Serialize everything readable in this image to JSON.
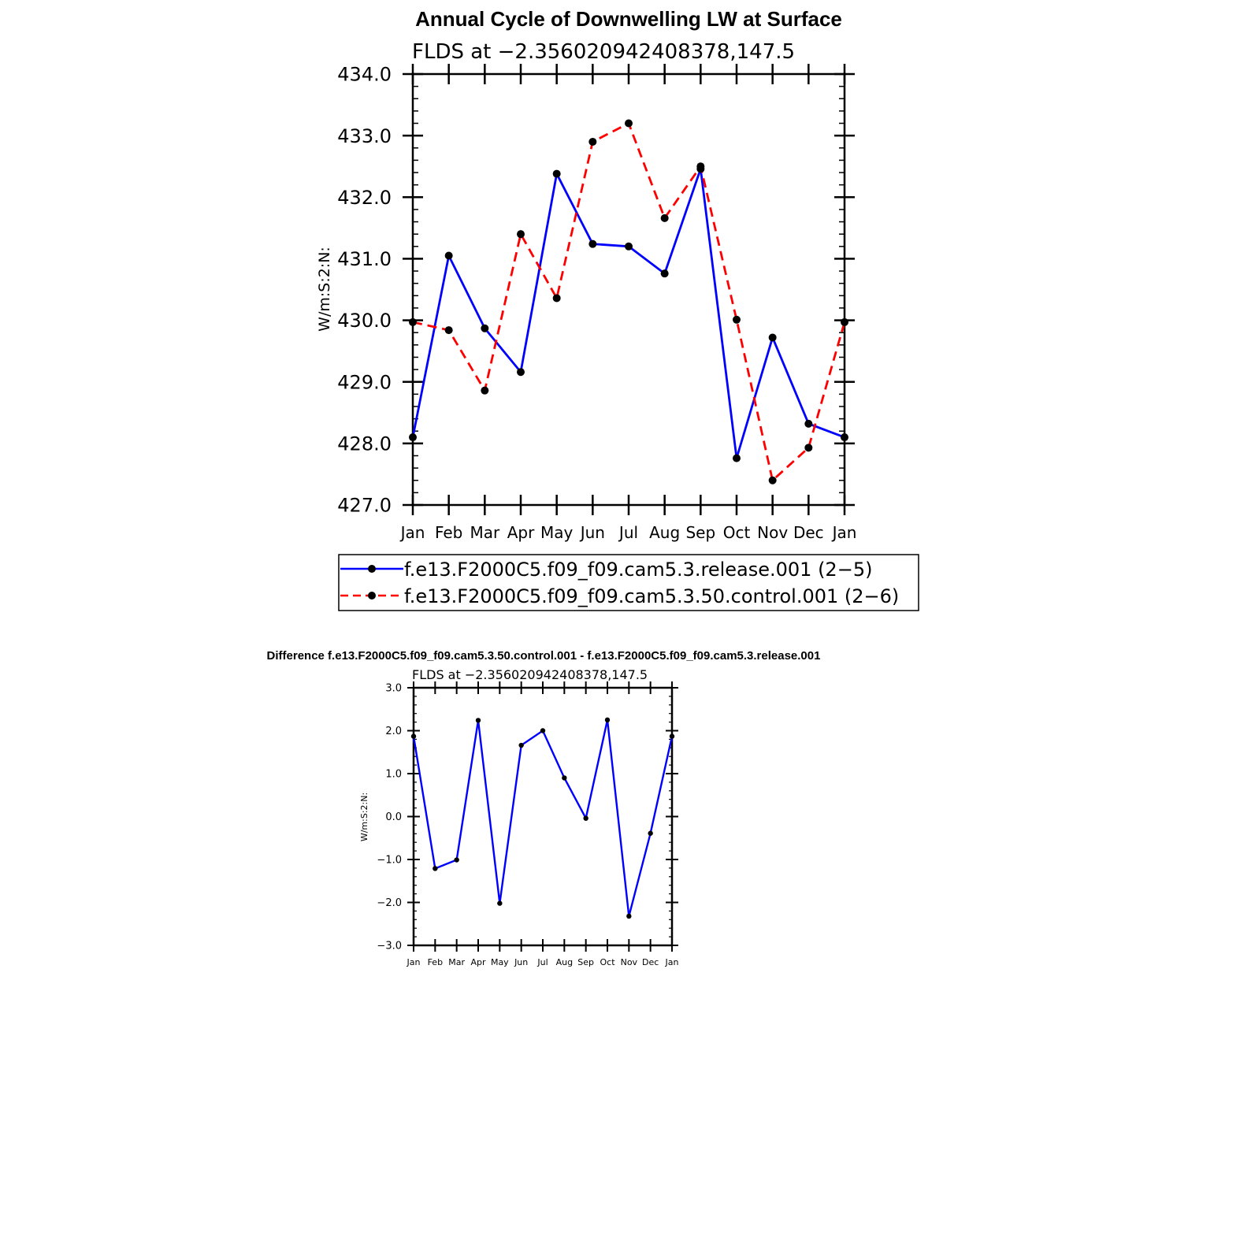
{
  "colors": {
    "series_release": "#0000ff",
    "series_control": "#ff0000",
    "axis": "#000000",
    "marker": "#000000"
  },
  "chart_data": [
    {
      "type": "line",
      "title": "Annual Cycle of Downwelling LW at Surface",
      "subtitle": "FLDS at −2.356020942408378,147.5",
      "xlabel": "",
      "ylabel": "W/m:S:2:N:",
      "categories": [
        "Jan",
        "Feb",
        "Mar",
        "Apr",
        "May",
        "Jun",
        "Jul",
        "Aug",
        "Sep",
        "Oct",
        "Nov",
        "Dec",
        "Jan"
      ],
      "ylim": [
        427.0,
        434.0
      ],
      "yticks": [
        "427.0",
        "428.0",
        "429.0",
        "430.0",
        "431.0",
        "432.0",
        "433.0",
        "434.0"
      ],
      "legend_position": "below",
      "grid": false,
      "series": [
        {
          "name": "f.e13.F2000C5.f09_f09.cam5.3.release.001 (2−5)",
          "style": "solid",
          "color": "#0000ff",
          "values": [
            428.1,
            431.05,
            429.87,
            429.16,
            432.38,
            431.24,
            431.2,
            430.76,
            432.46,
            427.76,
            429.72,
            428.32,
            428.1
          ]
        },
        {
          "name": "f.e13.F2000C5.f09_f09.cam5.3.50.control.001 (2−6)",
          "style": "dashed",
          "color": "#ff0000",
          "values": [
            429.97,
            429.84,
            428.86,
            431.4,
            430.36,
            432.9,
            433.2,
            431.66,
            432.5,
            430.01,
            427.4,
            427.93,
            429.97
          ]
        }
      ]
    },
    {
      "type": "line",
      "title": "Difference f.e13.F2000C5.f09_f09.cam5.3.50.control.001 - f.e13.F2000C5.f09_f09.cam5.3.release.001",
      "subtitle": "FLDS at −2.356020942408378,147.5",
      "xlabel": "",
      "ylabel": "W/m:S:2:N:",
      "categories": [
        "Jan",
        "Feb",
        "Mar",
        "Apr",
        "May",
        "Jun",
        "Jul",
        "Aug",
        "Sep",
        "Oct",
        "Nov",
        "Dec",
        "Jan"
      ],
      "ylim": [
        -3.0,
        3.0
      ],
      "yticks": [
        "−3.0",
        "−2.0",
        "−1.0",
        "0.0",
        "1.0",
        "2.0",
        "3.0"
      ],
      "grid": false,
      "series": [
        {
          "style": "solid",
          "color": "#0000ff",
          "values": [
            1.87,
            -1.21,
            -1.01,
            2.24,
            -2.02,
            1.66,
            2.0,
            0.9,
            -0.04,
            2.25,
            -2.32,
            -0.39,
            1.87
          ]
        }
      ]
    }
  ]
}
